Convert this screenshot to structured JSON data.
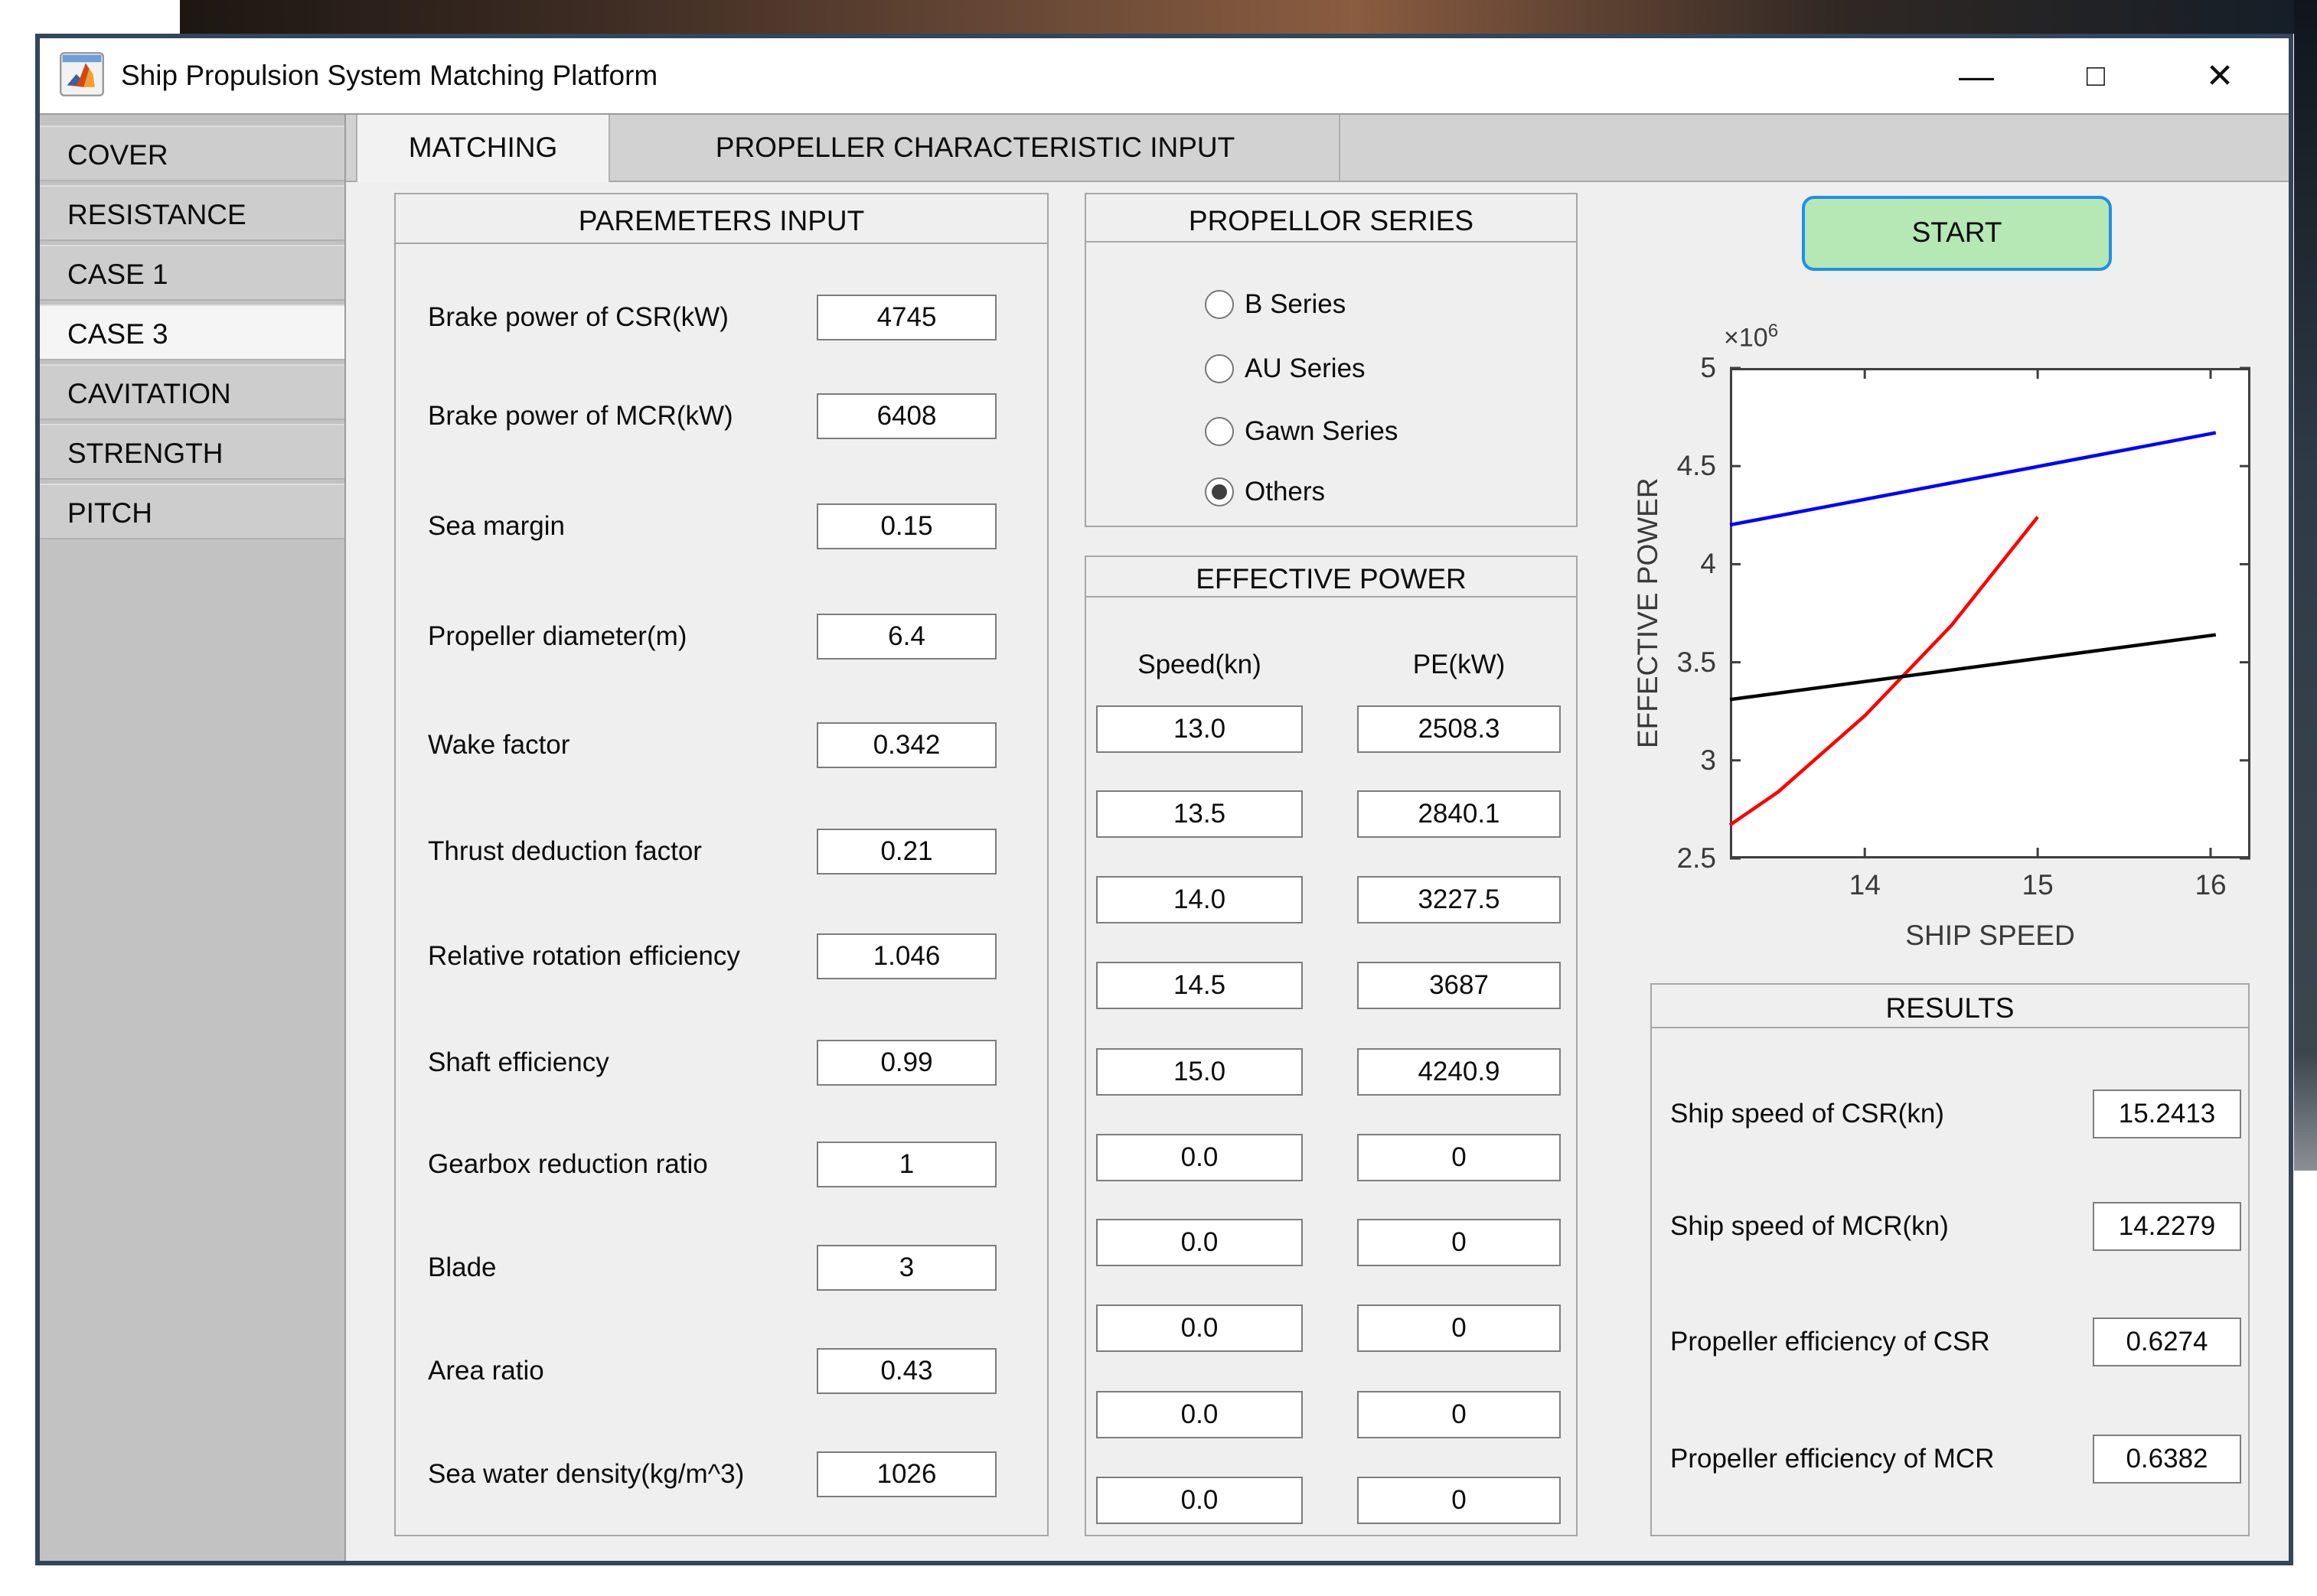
{
  "window": {
    "title": "Ship Propulsion System Matching Platform",
    "controls": {
      "minimize": "—",
      "maximize": "□",
      "close": "✕"
    }
  },
  "tabs": [
    {
      "label": "MATCHING",
      "active": true
    },
    {
      "label": "PROPELLER CHARACTERISTIC INPUT",
      "active": false
    }
  ],
  "sidebar": {
    "selected": "CASE 3",
    "items": [
      {
        "label": "COVER"
      },
      {
        "label": "RESISTANCE"
      },
      {
        "label": "CASE 1"
      },
      {
        "label": "CASE 3"
      },
      {
        "label": "CAVITATION"
      },
      {
        "label": "STRENGTH"
      },
      {
        "label": "PITCH"
      }
    ]
  },
  "parameters_panel": {
    "title": "PAREMETERS INPUT",
    "fields": [
      {
        "label": "Brake power of CSR(kW)",
        "value": "4745"
      },
      {
        "label": "Brake power of MCR(kW)",
        "value": "6408"
      },
      {
        "label": "Sea margin",
        "value": "0.15"
      },
      {
        "label": "Propeller diameter(m)",
        "value": "6.4"
      },
      {
        "label": "Wake factor",
        "value": "0.342"
      },
      {
        "label": "Thrust deduction factor",
        "value": "0.21"
      },
      {
        "label": "Relative rotation efficiency",
        "value": "1.046"
      },
      {
        "label": "Shaft efficiency",
        "value": "0.99"
      },
      {
        "label": "Gearbox reduction ratio",
        "value": "1"
      },
      {
        "label": "Blade",
        "value": "3"
      },
      {
        "label": "Area ratio",
        "value": "0.43"
      },
      {
        "label": "Sea water density(kg/m^3)",
        "value": "1026"
      }
    ]
  },
  "propeller_series_panel": {
    "title": "PROPELLOR SERIES",
    "options": [
      {
        "label": "B Series",
        "selected": false
      },
      {
        "label": "AU Series",
        "selected": false
      },
      {
        "label": "Gawn Series",
        "selected": false
      },
      {
        "label": "Others",
        "selected": true
      }
    ]
  },
  "effective_power_panel": {
    "title": "EFFECTIVE POWER",
    "columns": [
      "Speed(kn)",
      "PE(kW)"
    ],
    "rows": [
      [
        "13.0",
        "2508.3"
      ],
      [
        "13.5",
        "2840.1"
      ],
      [
        "14.0",
        "3227.5"
      ],
      [
        "14.5",
        "3687"
      ],
      [
        "15.0",
        "4240.9"
      ],
      [
        "0.0",
        "0"
      ],
      [
        "0.0",
        "0"
      ],
      [
        "0.0",
        "0"
      ],
      [
        "0.0",
        "0"
      ],
      [
        "0.0",
        "0"
      ]
    ]
  },
  "start_button": {
    "label": "START",
    "bg_color": "#b5e8b5",
    "border_color": "#1f8fea"
  },
  "results_panel": {
    "title": "RESULTS",
    "fields": [
      {
        "label": "Ship speed of CSR(kn)",
        "value": "15.2413"
      },
      {
        "label": "Ship speed of MCR(kn)",
        "value": "14.2279"
      },
      {
        "label": "Propeller efficiency of CSR",
        "value": "0.6274"
      },
      {
        "label": "Propeller efficiency of MCR",
        "value": "0.6382"
      }
    ]
  },
  "chart_data": {
    "type": "line",
    "xlabel": "SHIP SPEED",
    "ylabel": "EFFECTIVE POWER",
    "exponent_base": "×10",
    "exponent_sup": "6",
    "xlim": [
      13.22,
      16.23
    ],
    "ylim": [
      2.5,
      5.0
    ],
    "xticks": [
      "14",
      "15",
      "16"
    ],
    "yticks": [
      "2.5",
      "3",
      "3.5",
      "4",
      "4.5",
      "5"
    ],
    "grid": false,
    "legend": "none",
    "axis_color": "#3f3f3f",
    "y_unit": "1e6 (values in millions, i.e. W)",
    "series": [
      {
        "name": "blue-line",
        "color": "#0000ff",
        "x": [
          13.22,
          16.03
        ],
        "y": [
          4.2,
          4.67
        ]
      },
      {
        "name": "red-curve",
        "color": "#ff0000",
        "x": [
          13.22,
          13.5,
          14.0,
          14.5,
          15.0
        ],
        "y": [
          2.67,
          2.8401,
          3.2275,
          3.687,
          4.2409
        ]
      },
      {
        "name": "black-line",
        "color": "#000000",
        "x": [
          13.22,
          16.03
        ],
        "y": [
          3.31,
          3.64
        ]
      }
    ]
  }
}
